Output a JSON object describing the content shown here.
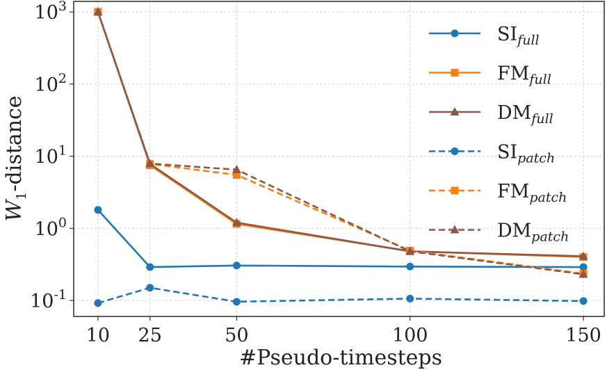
{
  "chart_data": {
    "type": "line",
    "xlabel": "#Pseudo-timesteps",
    "ylabel_base": "W",
    "ylabel_sub": "1",
    "ylabel_rest": "-distance",
    "x": [
      10,
      25,
      50,
      100,
      150
    ],
    "x_tick_labels": [
      "10",
      "25",
      "50",
      "100",
      "150"
    ],
    "xlim": [
      3,
      156
    ],
    "yscale": "log",
    "ylim": [
      0.06,
      1400
    ],
    "y_ticks": [
      {
        "value": 0.1,
        "base": "10",
        "exp": "-1"
      },
      {
        "value": 1,
        "base": "10",
        "exp": "0"
      },
      {
        "value": 10,
        "base": "10",
        "exp": "1"
      },
      {
        "value": 100,
        "base": "10",
        "exp": "2"
      },
      {
        "value": 1000,
        "base": "10",
        "exp": "3"
      }
    ],
    "grid": true,
    "legend_position": "right",
    "series": [
      {
        "name": "SI",
        "sub": "full",
        "color": "#1f77b4",
        "marker": "circle",
        "linestyle": "solid",
        "values": [
          1.8,
          0.29,
          0.305,
          0.295,
          0.29
        ]
      },
      {
        "name": "FM",
        "sub": "full",
        "color": "#ff7f0e",
        "marker": "square",
        "linestyle": "solid",
        "values": [
          1000,
          7.5,
          1.15,
          0.48,
          0.4
        ]
      },
      {
        "name": "DM",
        "sub": "full",
        "color": "#8c564b",
        "marker": "triangle",
        "linestyle": "solid",
        "values": [
          1000,
          7.8,
          1.2,
          0.48,
          0.41
        ]
      },
      {
        "name": "SI",
        "sub": "patch",
        "color": "#1f77b4",
        "marker": "circle",
        "linestyle": "dashed",
        "values": [
          0.092,
          0.15,
          0.096,
          0.106,
          0.098
        ]
      },
      {
        "name": "FM",
        "sub": "patch",
        "color": "#ff7f0e",
        "marker": "square",
        "linestyle": "dashed",
        "values": [
          1000,
          7.8,
          5.5,
          0.49,
          0.235
        ]
      },
      {
        "name": "DM",
        "sub": "patch",
        "color": "#8c564b",
        "marker": "triangle",
        "linestyle": "dashed",
        "values": [
          1000,
          7.9,
          6.5,
          0.48,
          0.23
        ]
      }
    ]
  }
}
